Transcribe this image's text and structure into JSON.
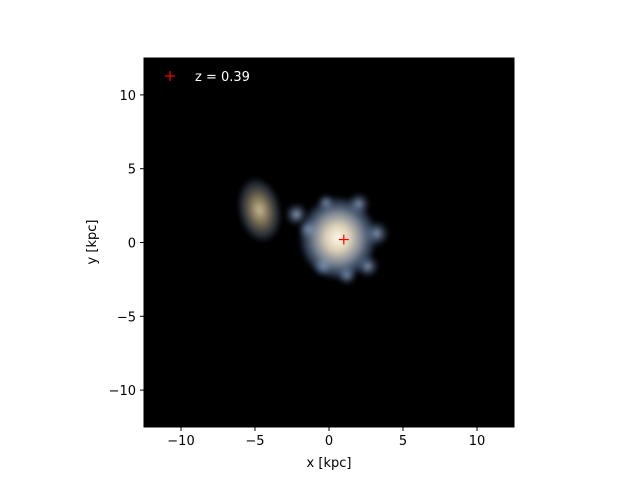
{
  "chart_data": {
    "type": "scatter",
    "title": "",
    "xlabel": "x [kpc]",
    "ylabel": "y [kpc]",
    "xlim": [
      -12.5,
      12.5
    ],
    "ylim": [
      -12.5,
      12.5
    ],
    "xticks": [
      -10,
      -5,
      0,
      5,
      10
    ],
    "yticks": [
      -10,
      -5,
      0,
      5,
      10
    ],
    "xtick_labels": [
      "−10",
      "−5",
      "0",
      "5",
      "10"
    ],
    "ytick_labels": [
      "−10",
      "−5",
      "0",
      "5",
      "10"
    ],
    "grid": false,
    "legend_position": "top-left",
    "background_color": "#000000",
    "series": [
      {
        "name": "z = 0.39",
        "marker": "+",
        "color": "#ff0000",
        "x": [
          1.0
        ],
        "y": [
          0.2
        ]
      }
    ],
    "image_features": [
      {
        "label": "main galaxy",
        "x": 0.6,
        "y": 0.3,
        "rx": 2.7,
        "ry": 2.9
      },
      {
        "label": "companion galaxy",
        "x": -4.7,
        "y": 2.2,
        "rx": 1.5,
        "ry": 2.3
      }
    ],
    "colors": {
      "bright_core": "#fff8e0",
      "warm_dust": "#8a7a50",
      "blue_halo": "#6f8fb8"
    }
  }
}
